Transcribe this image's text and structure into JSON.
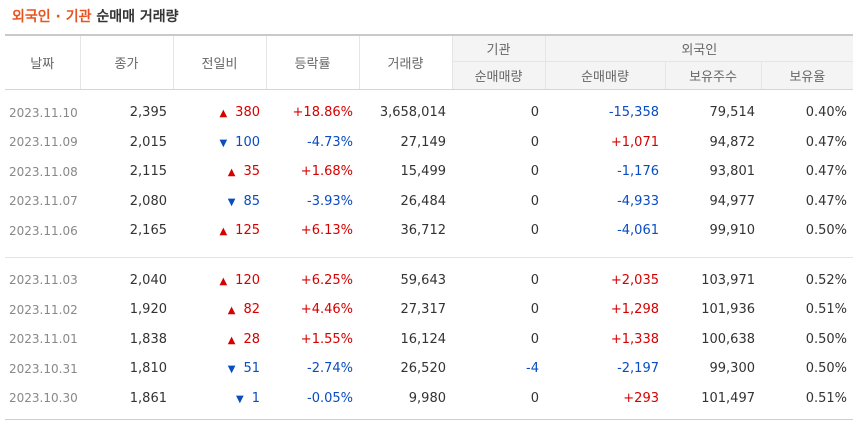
{
  "title": {
    "highlight": "외국인 · 기관",
    "rest": "순매매 거래량"
  },
  "headers": {
    "date": "날짜",
    "close": "종가",
    "change": "전일비",
    "rate": "등락률",
    "volume": "거래량",
    "institution": "기관",
    "institution_net": "순매매량",
    "foreign": "외국인",
    "foreign_net": "순매매량",
    "foreign_holdings": "보유주수",
    "foreign_ratio": "보유율"
  },
  "colors": {
    "up": "#d60000",
    "down": "#0a4cc2",
    "title_accent": "#e8541f"
  },
  "groups": [
    [
      {
        "date": "2023.11.10",
        "close": "2,395",
        "dir": "up",
        "arrow": "▲",
        "change": "380",
        "rate": "+18.86%",
        "volume": "3,658,014",
        "inst": "0",
        "inst_dir": "",
        "frgn": "-15,358",
        "frgn_dir": "dn",
        "hold": "79,514",
        "ratio": "0.40%"
      },
      {
        "date": "2023.11.09",
        "close": "2,015",
        "dir": "dn",
        "arrow": "▼",
        "change": "100",
        "rate": "-4.73%",
        "volume": "27,149",
        "inst": "0",
        "inst_dir": "",
        "frgn": "+1,071",
        "frgn_dir": "up",
        "hold": "94,872",
        "ratio": "0.47%"
      },
      {
        "date": "2023.11.08",
        "close": "2,115",
        "dir": "up",
        "arrow": "▲",
        "change": "35",
        "rate": "+1.68%",
        "volume": "15,499",
        "inst": "0",
        "inst_dir": "",
        "frgn": "-1,176",
        "frgn_dir": "dn",
        "hold": "93,801",
        "ratio": "0.47%"
      },
      {
        "date": "2023.11.07",
        "close": "2,080",
        "dir": "dn",
        "arrow": "▼",
        "change": "85",
        "rate": "-3.93%",
        "volume": "26,484",
        "inst": "0",
        "inst_dir": "",
        "frgn": "-4,933",
        "frgn_dir": "dn",
        "hold": "94,977",
        "ratio": "0.47%"
      },
      {
        "date": "2023.11.06",
        "close": "2,165",
        "dir": "up",
        "arrow": "▲",
        "change": "125",
        "rate": "+6.13%",
        "volume": "36,712",
        "inst": "0",
        "inst_dir": "",
        "frgn": "-4,061",
        "frgn_dir": "dn",
        "hold": "99,910",
        "ratio": "0.50%"
      }
    ],
    [
      {
        "date": "2023.11.03",
        "close": "2,040",
        "dir": "up",
        "arrow": "▲",
        "change": "120",
        "rate": "+6.25%",
        "volume": "59,643",
        "inst": "0",
        "inst_dir": "",
        "frgn": "+2,035",
        "frgn_dir": "up",
        "hold": "103,971",
        "ratio": "0.52%"
      },
      {
        "date": "2023.11.02",
        "close": "1,920",
        "dir": "up",
        "arrow": "▲",
        "change": "82",
        "rate": "+4.46%",
        "volume": "27,317",
        "inst": "0",
        "inst_dir": "",
        "frgn": "+1,298",
        "frgn_dir": "up",
        "hold": "101,936",
        "ratio": "0.51%"
      },
      {
        "date": "2023.11.01",
        "close": "1,838",
        "dir": "up",
        "arrow": "▲",
        "change": "28",
        "rate": "+1.55%",
        "volume": "16,124",
        "inst": "0",
        "inst_dir": "",
        "frgn": "+1,338",
        "frgn_dir": "up",
        "hold": "100,638",
        "ratio": "0.50%"
      },
      {
        "date": "2023.10.31",
        "close": "1,810",
        "dir": "dn",
        "arrow": "▼",
        "change": "51",
        "rate": "-2.74%",
        "volume": "26,520",
        "inst": "-4",
        "inst_dir": "dn",
        "frgn": "-2,197",
        "frgn_dir": "dn",
        "hold": "99,300",
        "ratio": "0.50%"
      },
      {
        "date": "2023.10.30",
        "close": "1,861",
        "dir": "dn",
        "arrow": "▼",
        "change": "1",
        "rate": "-0.05%",
        "volume": "9,980",
        "inst": "0",
        "inst_dir": "",
        "frgn": "+293",
        "frgn_dir": "up",
        "hold": "101,497",
        "ratio": "0.51%"
      }
    ]
  ]
}
